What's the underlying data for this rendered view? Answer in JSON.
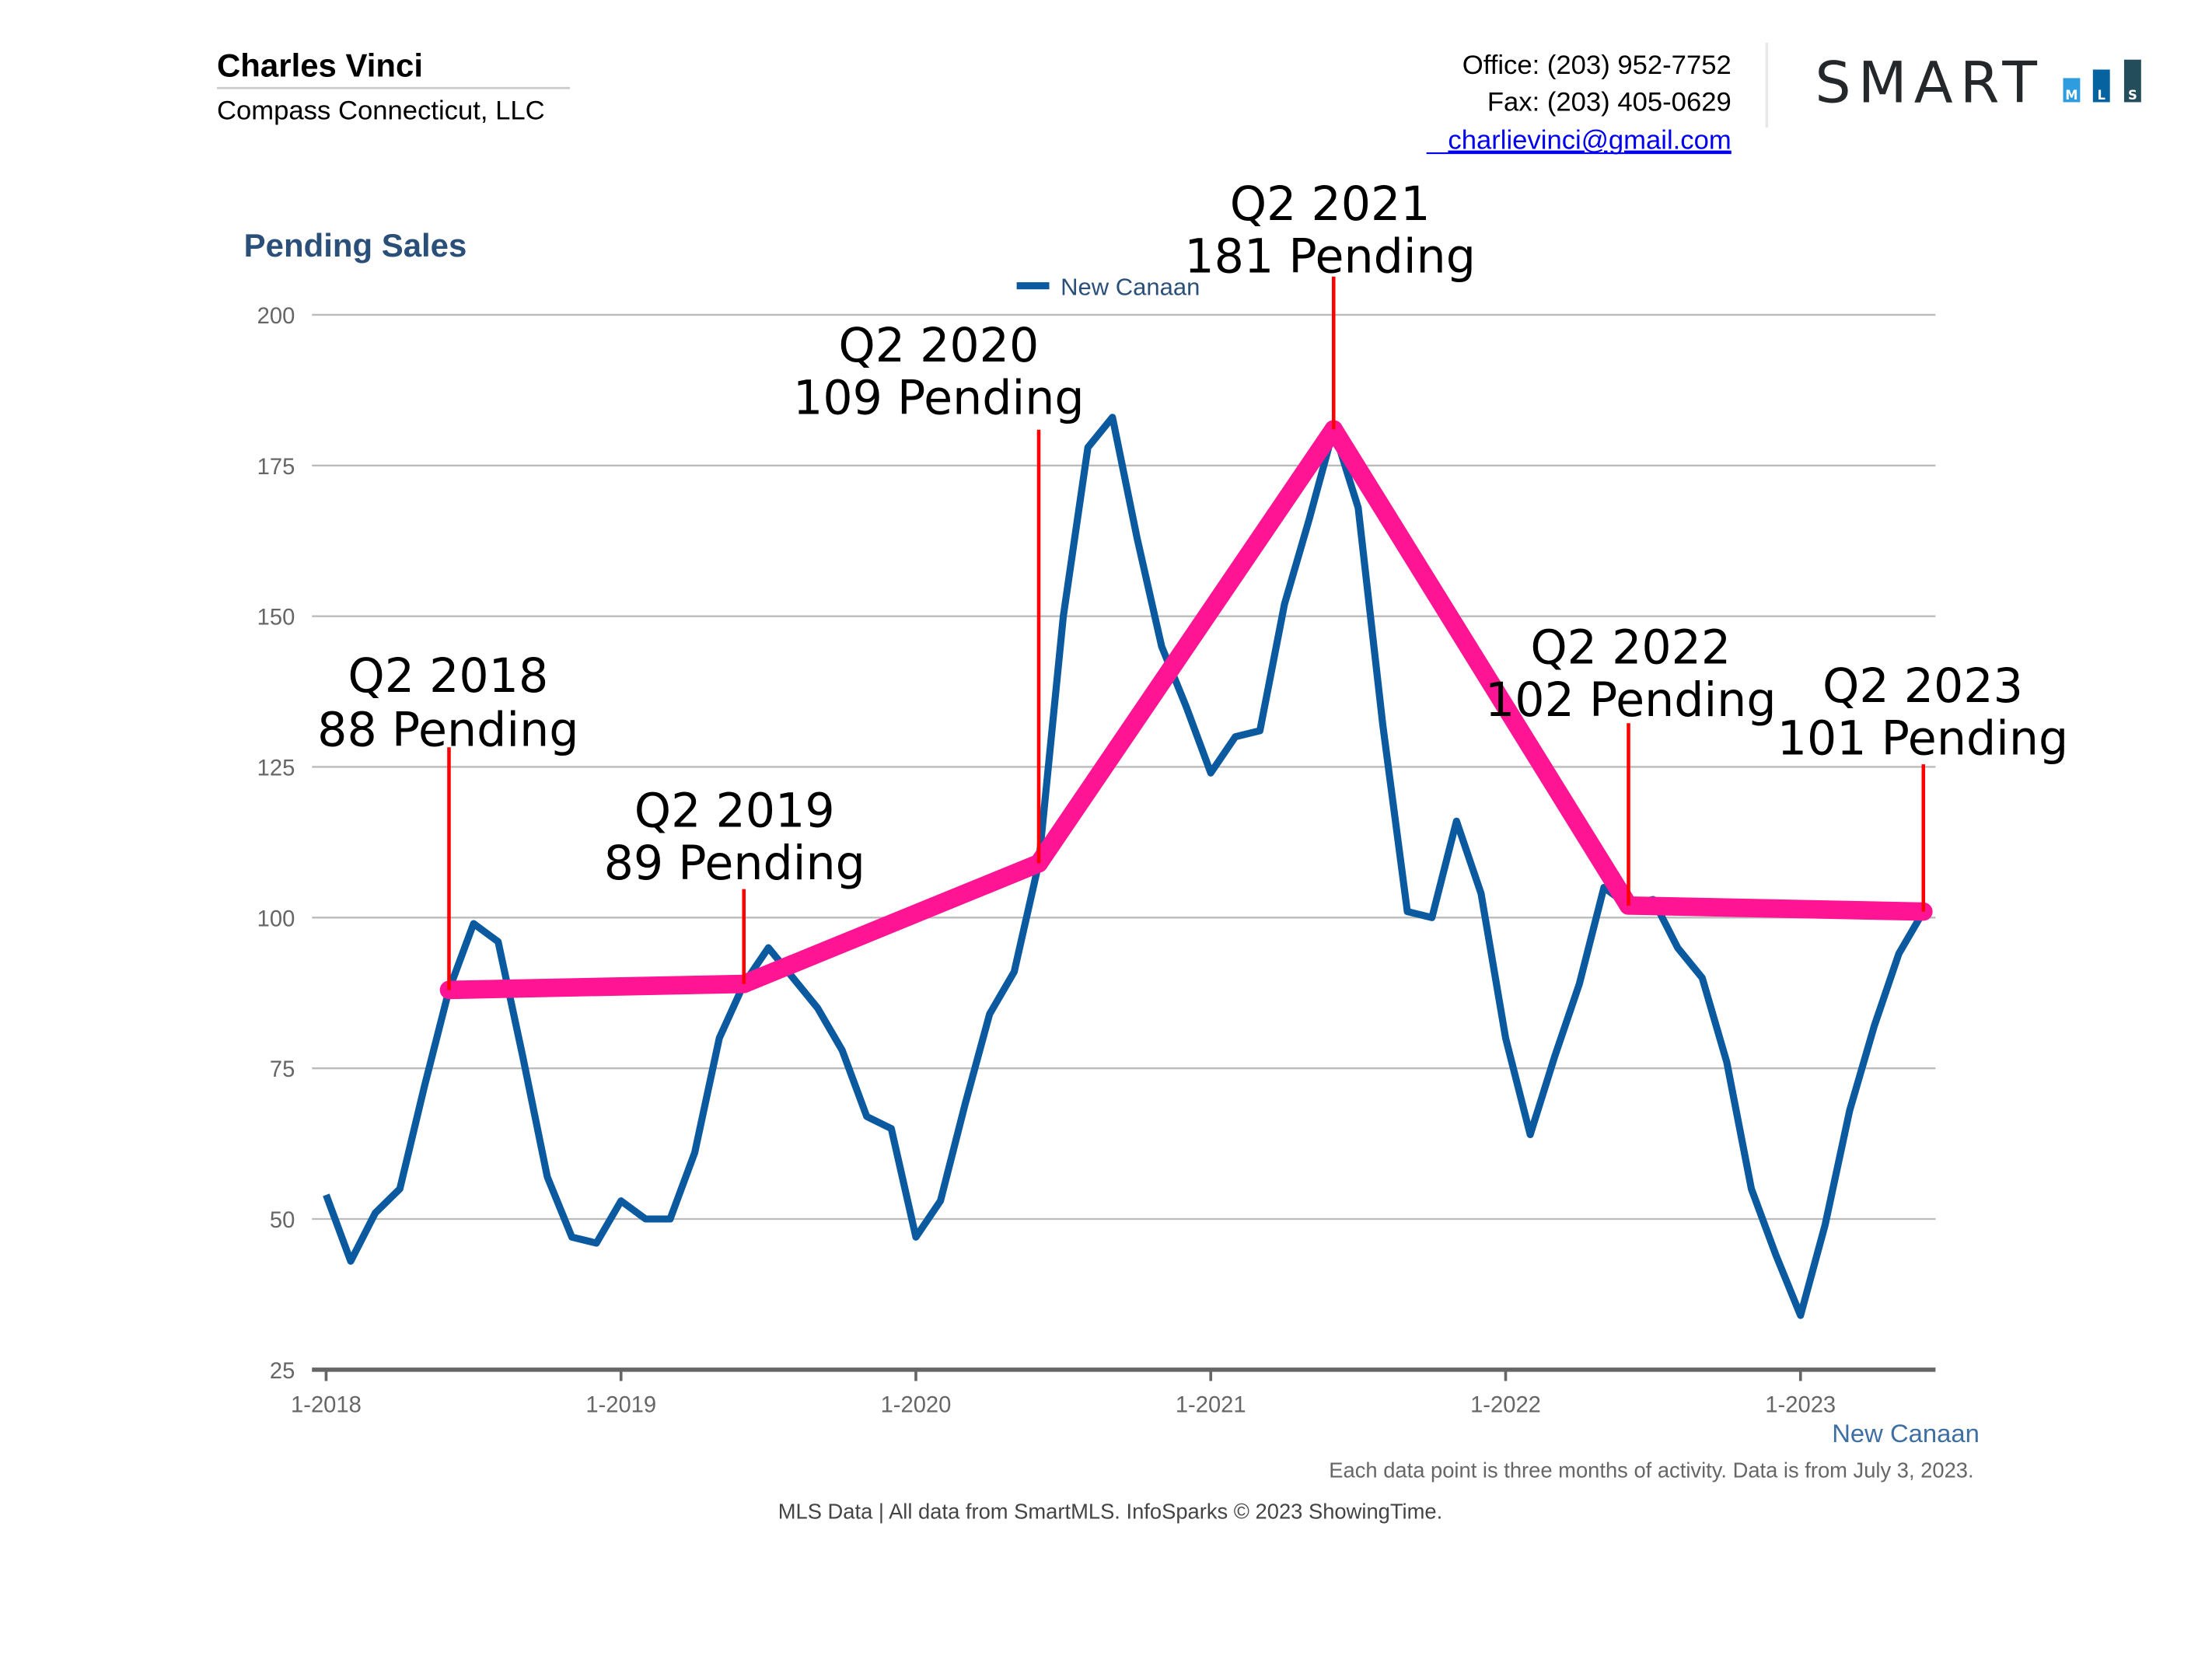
{
  "header": {
    "agent_name": "Charles Vinci",
    "company": "Compass Connecticut, LLC",
    "office": "Office: (203) 952-7752",
    "fax": "Fax: (203) 405-0629",
    "email": "charlievinci@gmail.com",
    "logo_text": "SMART",
    "logo_blocks": [
      "M",
      "L",
      "S"
    ]
  },
  "colors": {
    "series": "#0b5aa0",
    "trend": "#ff1493",
    "annotation_line": "#ff0000",
    "title": "#2a4f79",
    "logo_blocks": [
      "#2e9ddf",
      "#0663a0",
      "#234d5a"
    ]
  },
  "chart_data": {
    "type": "line",
    "title": "Pending Sales",
    "ylim": [
      25,
      200
    ],
    "yticks": [
      "25",
      "50",
      "75",
      "100",
      "125",
      "150",
      "175",
      "200"
    ],
    "xticks": [
      "1-2018",
      "1-2019",
      "1-2020",
      "1-2021",
      "1-2022",
      "1-2023"
    ],
    "grid": true,
    "legend": "top-center",
    "series": [
      {
        "name": "New Canaan",
        "start": "1-2018",
        "frequency": "monthly",
        "values": [
          54,
          43,
          51,
          55,
          72,
          88,
          99,
          96,
          77,
          57,
          47,
          46,
          53,
          50,
          50,
          61,
          80,
          89,
          95,
          90,
          85,
          78,
          67,
          65,
          47,
          53,
          69,
          84,
          91,
          109,
          150,
          178,
          183,
          163,
          145,
          135,
          124,
          130,
          131,
          152,
          166,
          181,
          168,
          132,
          101,
          100,
          116,
          104,
          80,
          64,
          77,
          89,
          105,
          102,
          103,
          95,
          90,
          76,
          55,
          44,
          34,
          49,
          68,
          82,
          94,
          101
        ]
      }
    ],
    "trend_points": [
      {
        "date": "6-2018",
        "value": 88,
        "label1": "Q2 2018",
        "label2": "88 Pending"
      },
      {
        "date": "6-2019",
        "value": 89,
        "label1": "Q2 2019",
        "label2": "89 Pending"
      },
      {
        "date": "6-2020",
        "value": 109,
        "label1": "Q2 2020",
        "label2": "109 Pending"
      },
      {
        "date": "6-2021",
        "value": 181,
        "label1": "Q2 2021",
        "label2": "181 Pending"
      },
      {
        "date": "6-2022",
        "value": 102,
        "label1": "Q2 2022",
        "label2": "102 Pending"
      },
      {
        "date": "6-2023",
        "value": 101,
        "label1": "Q2 2023",
        "label2": "101 Pending"
      }
    ],
    "series_end_label": "New Canaan"
  },
  "footer": {
    "note": "Each data point is three months of activity. Data is from July 3, 2023.",
    "source": "MLS Data | All data from SmartMLS. InfoSparks © 2023 ShowingTime."
  }
}
